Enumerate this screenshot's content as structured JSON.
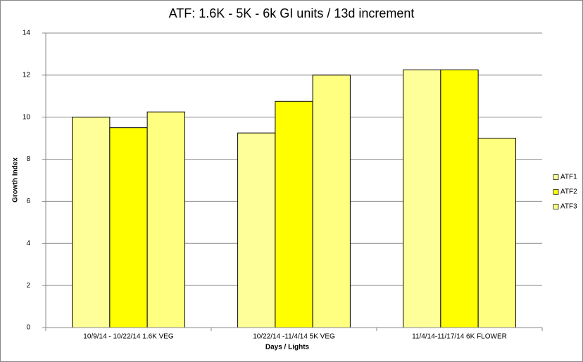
{
  "chart_data": {
    "type": "bar",
    "title": "ATF:  1.6K - 5K - 6k GI units / 13d increment",
    "x_label": "Days / Lights",
    "y_label": "Growth Index",
    "categories": [
      "10/9/14 - 10/22/14 1.6K VEG",
      "10/22/14 -11/4/14 5K VEG",
      "11/4/14-11/17/14 6K FLOWER"
    ],
    "series": [
      {
        "name": "ATF1",
        "color": "#ffff99",
        "values": [
          10,
          9.25,
          12.25
        ]
      },
      {
        "name": "ATF2",
        "color": "#ffff00",
        "values": [
          9.5,
          10.75,
          12.25
        ]
      },
      {
        "name": "ATF3",
        "color": "#ffff80",
        "values": [
          10.25,
          12,
          9
        ]
      }
    ],
    "ylim": [
      0,
      14
    ],
    "yticks": [
      0,
      2,
      4,
      6,
      8,
      10,
      12,
      14
    ],
    "grid": true,
    "legend": "right"
  }
}
